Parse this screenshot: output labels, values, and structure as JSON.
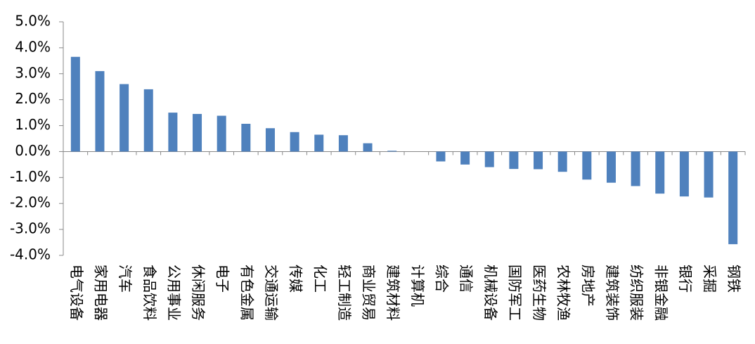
{
  "chart_data": {
    "type": "bar",
    "categories": [
      "电气设备",
      "家用电器",
      "汽车",
      "食品饮料",
      "公用事业",
      "休闲服务",
      "电子",
      "有色金属",
      "交通运输",
      "传媒",
      "化工",
      "轻工制造",
      "商业贸易",
      "建筑材料",
      "计算机",
      "综合",
      "通信",
      "机械设备",
      "国防军工",
      "医药生物",
      "农林牧渔",
      "房地产",
      "建筑装饰",
      "纺织服装",
      "非银金融",
      "银行",
      "采掘",
      "钢铁"
    ],
    "values": [
      3.65,
      3.1,
      2.6,
      2.4,
      1.5,
      1.45,
      1.38,
      1.07,
      0.9,
      0.75,
      0.65,
      0.63,
      0.32,
      0.03,
      0.0,
      -0.38,
      -0.5,
      -0.6,
      -0.67,
      -0.68,
      -0.78,
      -1.08,
      -1.2,
      -1.33,
      -1.62,
      -1.73,
      -1.77,
      -3.57
    ],
    "color": "#4f81bd",
    "ylim": [
      -4,
      5
    ],
    "yticks": [
      {
        "value": -4,
        "label": "-4.0%"
      },
      {
        "value": -3,
        "label": "-3.0%"
      },
      {
        "value": -2,
        "label": "-2.0%"
      },
      {
        "value": -1,
        "label": "-1.0%"
      },
      {
        "value": 0,
        "label": "0.0%"
      },
      {
        "value": 1,
        "label": "1.0%"
      },
      {
        "value": 2,
        "label": "2.0%"
      },
      {
        "value": 3,
        "label": "3.0%"
      },
      {
        "value": 4,
        "label": "4.0%"
      },
      {
        "value": 5,
        "label": "5.0%"
      }
    ],
    "grid": false
  }
}
